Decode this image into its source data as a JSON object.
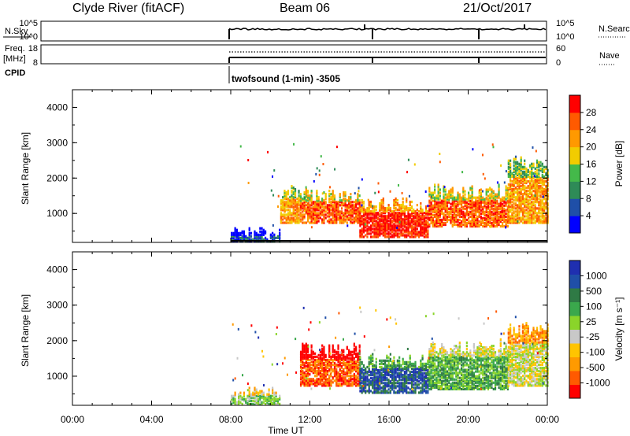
{
  "header": {
    "station": "Clyde River (fitACF)",
    "beam": "Beam 06",
    "date": "21/Oct/2017"
  },
  "strip": {
    "nsky_label": "N.Sky",
    "nsky_ticks": [
      "10^5",
      "10^0"
    ],
    "nsearch_ticks": [
      "10^5",
      "10^0"
    ],
    "nsearch_label": "N.Search",
    "freq_label_top": "Freq.",
    "freq_label_unit": "[MHz]",
    "freq_ticks": [
      "18",
      "8"
    ],
    "nave_ticks": [
      "60",
      "0"
    ],
    "nave_label": "Nave",
    "cpid_label": "CPID",
    "cpid_value": "twofsound (1-min) -3505"
  },
  "colors": {
    "power": [
      "#0000ff",
      "#1f4fa8",
      "#2e8b57",
      "#44b94a",
      "#f2cc00",
      "#ff9900",
      "#ff5a00",
      "#ff0000"
    ],
    "velocity": [
      "#ff0000",
      "#ff5a00",
      "#ff9a00",
      "#ffc400",
      "#c8c8c8",
      "#8ad42a",
      "#3aa84c",
      "#2f7a45",
      "#1f4fa8",
      "#1f2fb0"
    ]
  },
  "chart_data": [
    {
      "type": "heatmap",
      "name": "power",
      "xlabel": "",
      "ylabel": "Slant Range [km]",
      "x_ticks": [
        "00:00",
        "04:00",
        "08:00",
        "12:00",
        "16:00",
        "20:00",
        "00:00"
      ],
      "y_ticks": [
        "1000",
        "2000",
        "3000",
        "4000"
      ],
      "xlim_hours": [
        0,
        24
      ],
      "ylim_km": [
        180,
        4500
      ],
      "colorbar_label": "Power [dB]",
      "colorbar_ticks": [
        "4",
        "8",
        "12",
        "16",
        "20",
        "24",
        "28"
      ],
      "colorbar_range": [
        0,
        32
      ],
      "scatter_onset_hours": 8.0,
      "bands": [
        {
          "t_start": 8.0,
          "t_end": 10.5,
          "r_min": 180,
          "r_max": 400,
          "level": 1
        },
        {
          "t_start": 10.5,
          "t_end": 11.5,
          "r_min": 700,
          "r_max": 1600,
          "level": 5
        },
        {
          "t_start": 11.5,
          "t_end": 14.5,
          "r_min": 700,
          "r_max": 1500,
          "level": 6
        },
        {
          "t_start": 14.5,
          "t_end": 18.0,
          "r_min": 300,
          "r_max": 1200,
          "level": 7
        },
        {
          "t_start": 18.0,
          "t_end": 22.0,
          "r_min": 600,
          "r_max": 1600,
          "level": 6
        },
        {
          "t_start": 22.0,
          "t_end": 24.0,
          "r_min": 700,
          "r_max": 2400,
          "level": 5
        }
      ]
    },
    {
      "type": "heatmap",
      "name": "velocity",
      "xlabel": "Time UT",
      "ylabel": "Slant Range [km]",
      "x_ticks": [
        "00:00",
        "04:00",
        "08:00",
        "12:00",
        "16:00",
        "20:00",
        "00:00"
      ],
      "y_ticks": [
        "1000",
        "2000",
        "3000",
        "4000"
      ],
      "xlim_hours": [
        0,
        24
      ],
      "ylim_km": [
        180,
        4500
      ],
      "colorbar_label": "Velocity [m s⁻¹]",
      "colorbar_ticks": [
        "1000",
        "500",
        "100",
        "25",
        "-25",
        "-100",
        "-500",
        "-1000"
      ],
      "bands": [
        {
          "t_start": 8.0,
          "t_end": 10.5,
          "r_min": 180,
          "r_max": 500,
          "level": 5
        },
        {
          "t_start": 11.5,
          "t_end": 14.5,
          "r_min": 700,
          "r_max": 1700,
          "level": 1
        },
        {
          "t_start": 14.5,
          "t_end": 18.0,
          "r_min": 500,
          "r_max": 1400,
          "level": 8
        },
        {
          "t_start": 18.0,
          "t_end": 22.0,
          "r_min": 600,
          "r_max": 1800,
          "level": 6
        },
        {
          "t_start": 22.0,
          "t_end": 24.0,
          "r_min": 700,
          "r_max": 2300,
          "level": 4
        }
      ]
    }
  ]
}
